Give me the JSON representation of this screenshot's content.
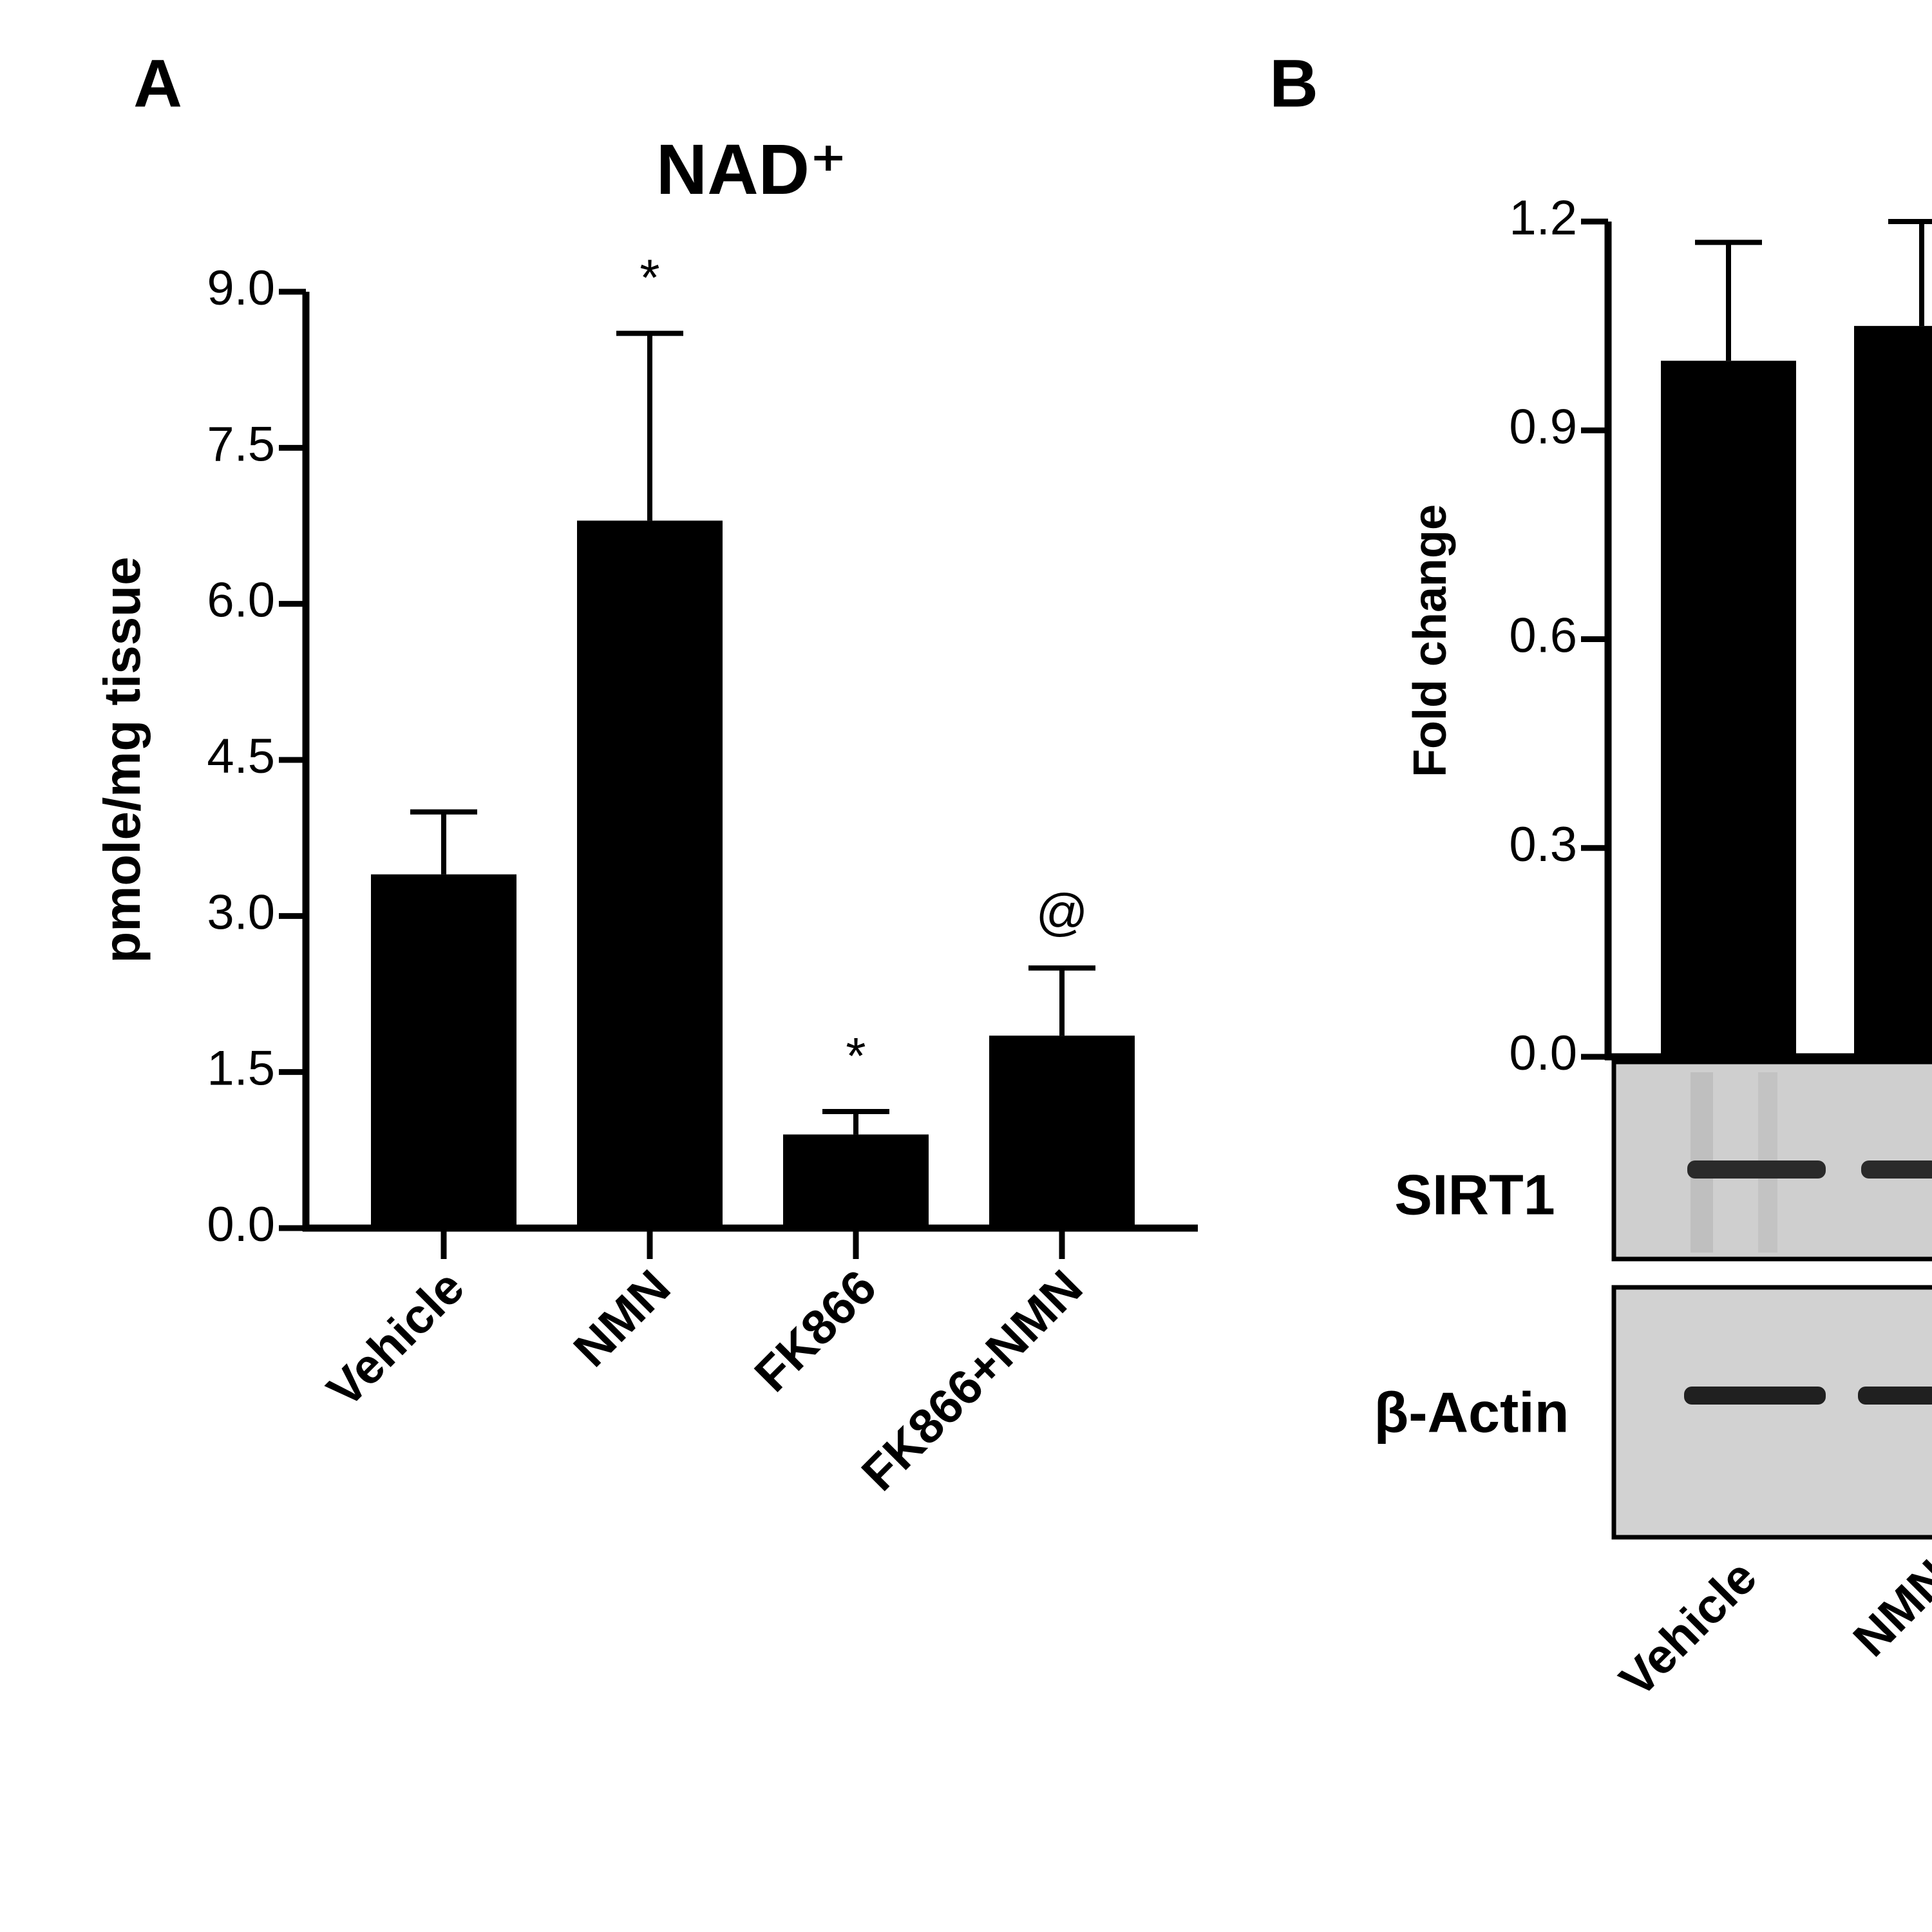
{
  "chart_data": [
    {
      "type": "bar",
      "panel": "A",
      "title": "NAD⁺",
      "y_label": "pmole/mg tissue",
      "categories": [
        "Vehicle",
        "NMN",
        "FK866",
        "FK866+NMN"
      ],
      "values": [
        3.4,
        6.8,
        0.9,
        1.85
      ],
      "errors": [
        0.6,
        1.8,
        0.22,
        0.65
      ],
      "annotations": [
        null,
        "*",
        "*",
        "@"
      ],
      "color": "#000000",
      "ylim": [
        0,
        9
      ],
      "yticks": [
        {
          "value": 0,
          "label": "0.0"
        },
        1.5,
        {
          "value": 3,
          "label": "3.0"
        },
        4.5,
        {
          "value": 6,
          "label": "6.0"
        },
        7.5,
        {
          "value": 9,
          "label": "9.0"
        }
      ]
    },
    {
      "type": "bar",
      "panel": "B",
      "y_label": "Fold change",
      "categories": [
        "Vehicle",
        "NMN"
      ],
      "values": [
        1.0,
        1.05
      ],
      "errors": [
        0.17,
        0.15
      ],
      "color": "#000000",
      "ylim": [
        0,
        1.2
      ],
      "yticks": [
        {
          "value": 0,
          "label": "0.0"
        },
        0.3,
        0.6,
        0.9,
        1.2
      ],
      "blot_labels": [
        "SIRT1",
        "β-Actin"
      ]
    }
  ]
}
